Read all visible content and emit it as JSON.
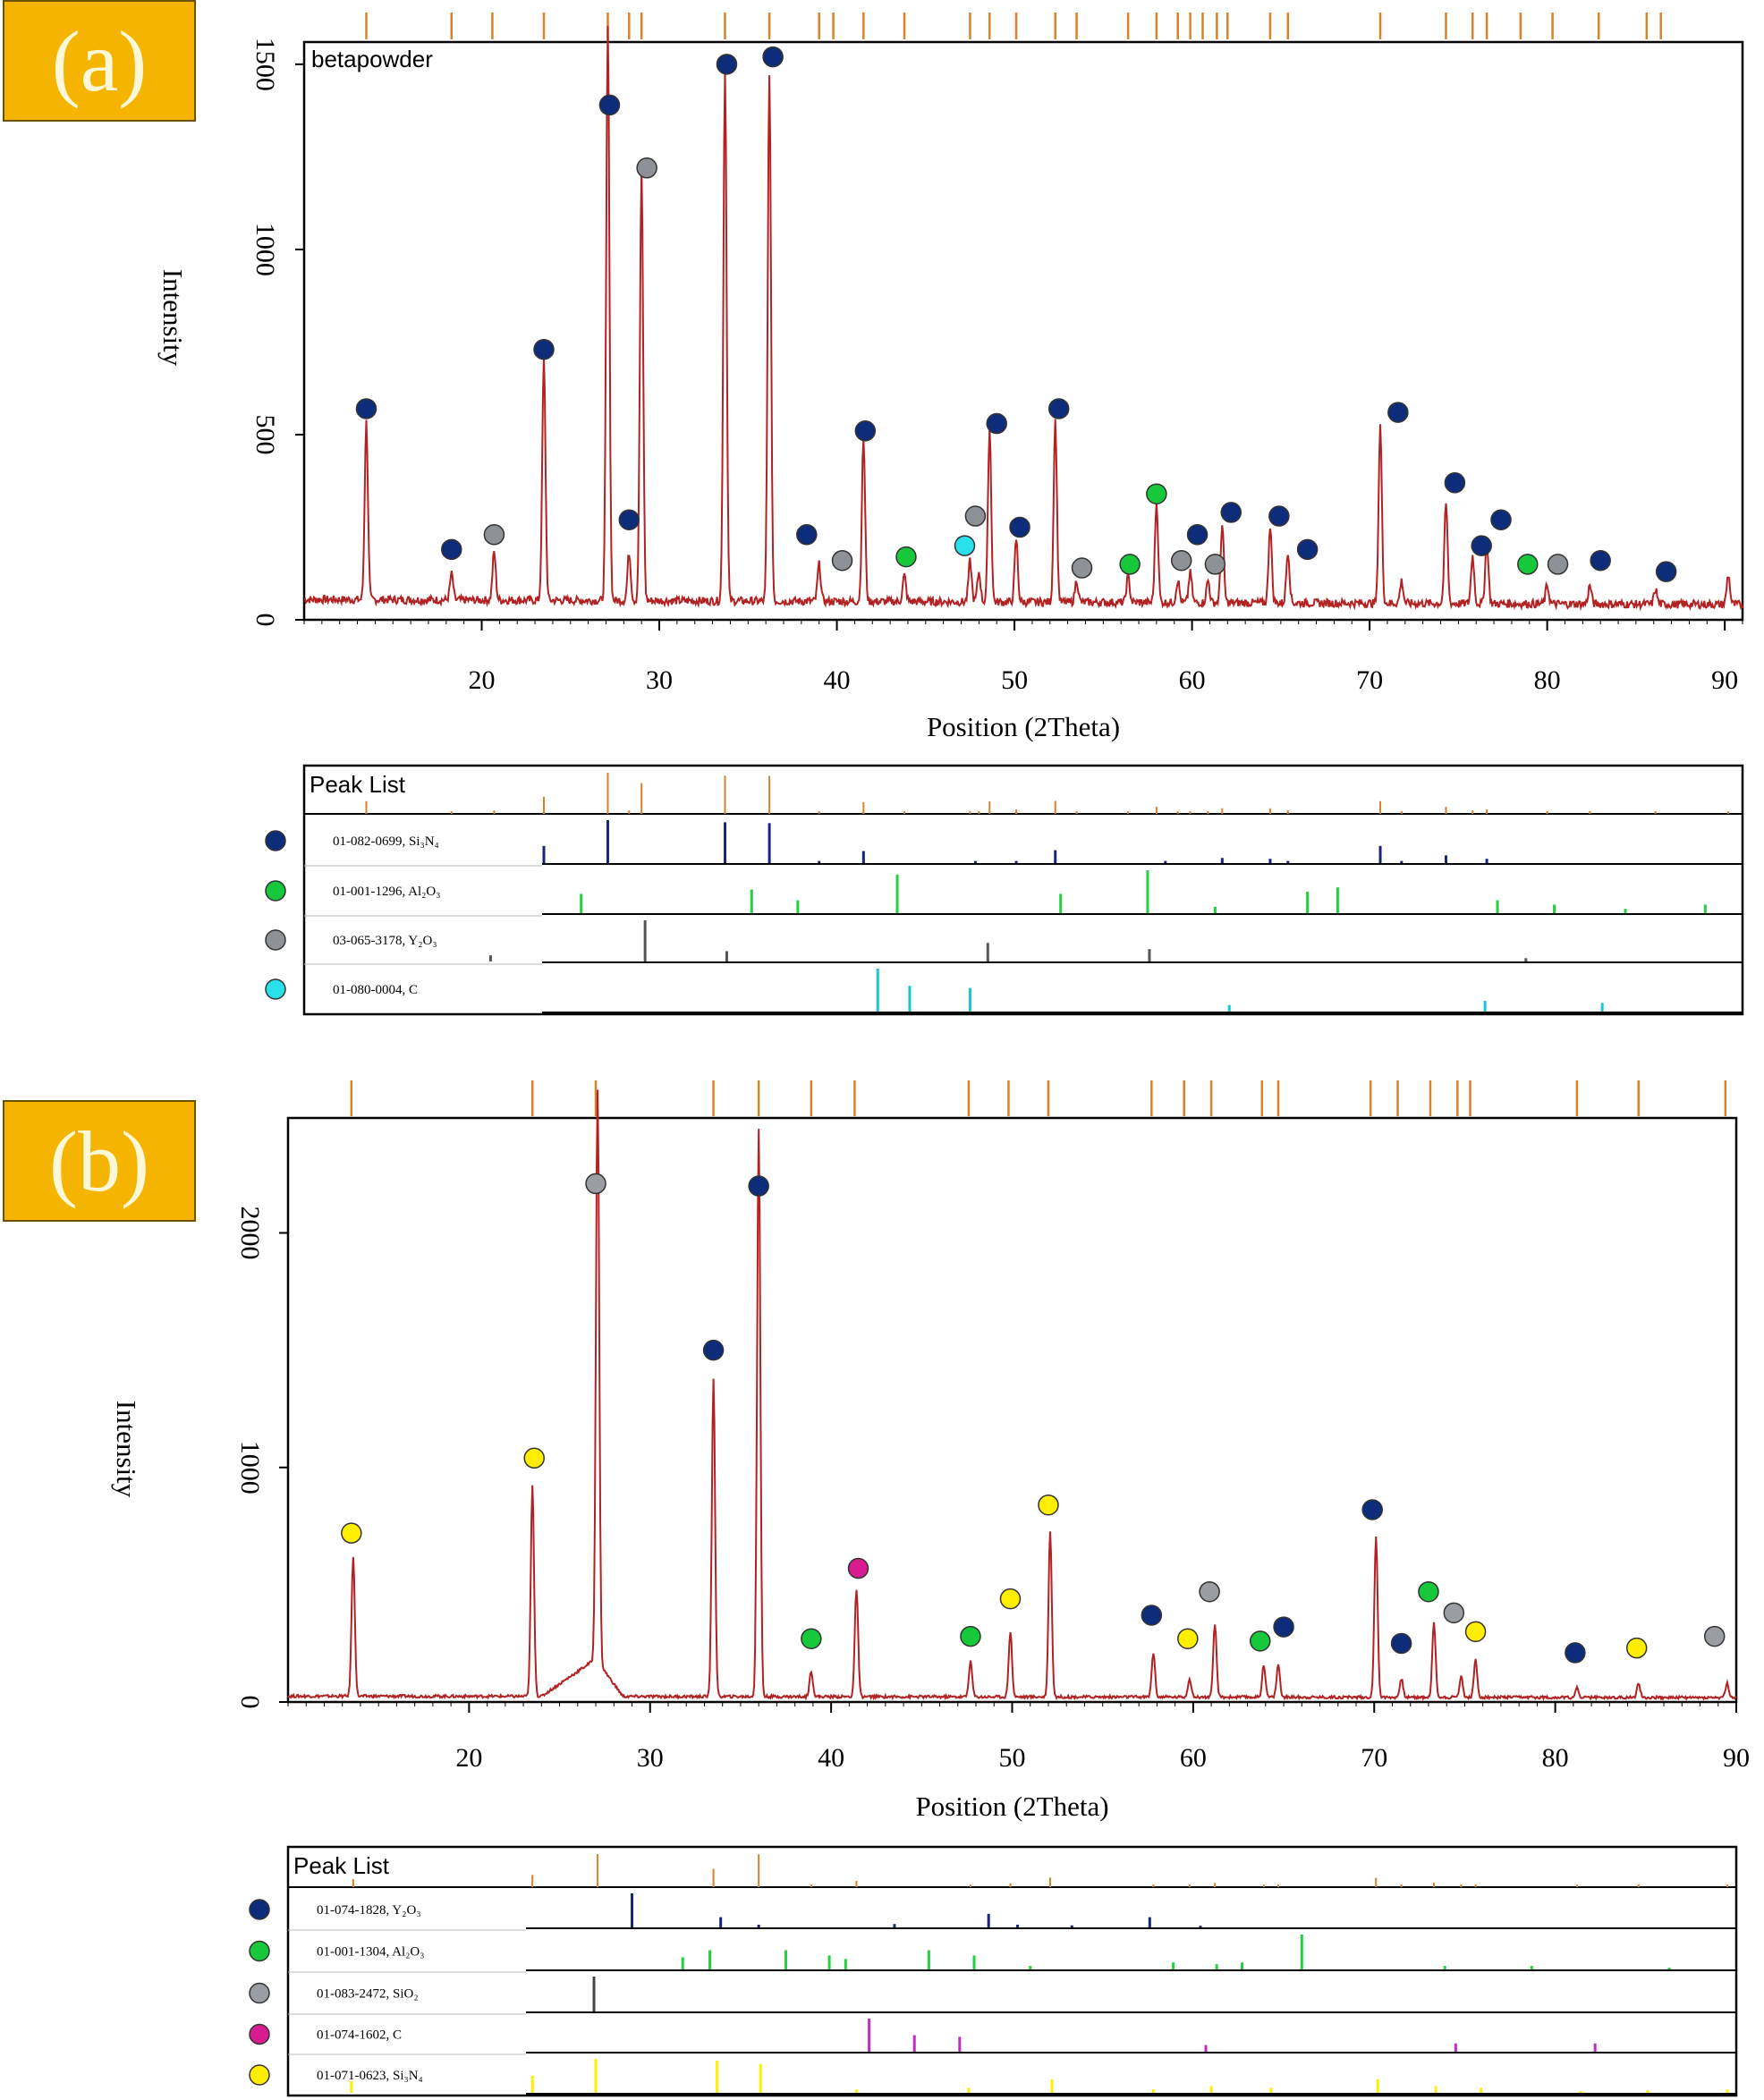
{
  "chart_data": [
    {
      "panel": "(a)",
      "type": "line",
      "title": "betapowder",
      "xlabel": "Position (2Theta)",
      "ylabel": "Intensity",
      "xlim": [
        10,
        91
      ],
      "ylim": [
        0,
        1560
      ],
      "xticks": [
        20,
        30,
        40,
        50,
        60,
        70,
        80,
        90
      ],
      "yticks": [
        0,
        500,
        1000,
        1500
      ],
      "line_color": "#b22222",
      "peaks": [
        [
          13.5,
          480
        ],
        [
          18.3,
          70
        ],
        [
          20.7,
          130
        ],
        [
          23.5,
          650
        ],
        [
          27.1,
          1550
        ],
        [
          28.3,
          130
        ],
        [
          29.0,
          1160
        ],
        [
          33.7,
          1440
        ],
        [
          36.2,
          1430
        ],
        [
          39.0,
          100
        ],
        [
          41.5,
          440
        ],
        [
          43.8,
          70
        ],
        [
          47.5,
          110
        ],
        [
          48.0,
          80
        ],
        [
          48.6,
          470
        ],
        [
          50.1,
          170
        ],
        [
          52.3,
          490
        ],
        [
          53.5,
          60
        ],
        [
          56.4,
          70
        ],
        [
          58.0,
          270
        ],
        [
          59.2,
          60
        ],
        [
          59.9,
          80
        ],
        [
          60.9,
          60
        ],
        [
          61.7,
          210
        ],
        [
          64.4,
          210
        ],
        [
          65.4,
          140
        ],
        [
          70.6,
          480
        ],
        [
          71.8,
          60
        ],
        [
          74.3,
          270
        ],
        [
          75.8,
          130
        ],
        [
          76.6,
          170
        ],
        [
          80.0,
          50
        ],
        [
          82.4,
          50
        ],
        [
          86.1,
          40
        ],
        [
          90.2,
          80
        ]
      ],
      "markers": [
        [
          13.5,
          570,
          "Si3N4"
        ],
        [
          18.3,
          190,
          "Si3N4"
        ],
        [
          20.7,
          230,
          "Y2O3"
        ],
        [
          23.5,
          730,
          "Si3N4"
        ],
        [
          27.2,
          1390,
          "Si3N4"
        ],
        [
          28.3,
          270,
          "Si3N4"
        ],
        [
          29.3,
          1220,
          "Y2O3"
        ],
        [
          33.8,
          1500,
          "Si3N4"
        ],
        [
          36.4,
          1520,
          "Si3N4"
        ],
        [
          38.3,
          230,
          "Si3N4"
        ],
        [
          40.3,
          160,
          "Y2O3"
        ],
        [
          41.6,
          510,
          "Si3N4"
        ],
        [
          43.9,
          170,
          "Al2O3"
        ],
        [
          47.2,
          200,
          "C"
        ],
        [
          47.8,
          280,
          "Y2O3"
        ],
        [
          49.0,
          530,
          "Si3N4"
        ],
        [
          50.3,
          250,
          "Si3N4"
        ],
        [
          52.5,
          570,
          "Si3N4"
        ],
        [
          53.8,
          140,
          "Y2O3"
        ],
        [
          56.5,
          150,
          "Al2O3"
        ],
        [
          58.0,
          340,
          "Al2O3"
        ],
        [
          59.4,
          160,
          "Y2O3"
        ],
        [
          60.3,
          230,
          "Si3N4"
        ],
        [
          61.3,
          150,
          "Y2O3"
        ],
        [
          62.2,
          290,
          "Si3N4"
        ],
        [
          64.9,
          280,
          "Si3N4"
        ],
        [
          66.5,
          190,
          "Si3N4"
        ],
        [
          71.6,
          560,
          "Si3N4"
        ],
        [
          74.8,
          370,
          "Si3N4"
        ],
        [
          76.3,
          200,
          "Si3N4"
        ],
        [
          77.4,
          270,
          "Si3N4"
        ],
        [
          78.9,
          150,
          "Al2O3"
        ],
        [
          80.6,
          150,
          "Y2O3"
        ],
        [
          83.0,
          160,
          "Si3N4"
        ],
        [
          86.7,
          130,
          "Si3N4"
        ]
      ],
      "reference_ticks": [
        13.5,
        18.3,
        20.6,
        23.5,
        27.1,
        28.3,
        29.0,
        33.7,
        36.2,
        39.0,
        39.8,
        41.5,
        43.8,
        47.5,
        48.6,
        50.1,
        52.3,
        53.5,
        56.4,
        58.0,
        59.2,
        59.9,
        60.6,
        61.4,
        62.0,
        64.4,
        65.4,
        70.6,
        74.3,
        75.8,
        76.6,
        78.5,
        80.3,
        82.9,
        85.6,
        86.4
      ],
      "peak_list": {
        "title": "Peak List",
        "phases": [
          {
            "code": "01-082-0699, Si₃N₄",
            "phase": "Si3N4",
            "color": "#1a237e",
            "sticks": [
              [
                23.5,
                0.4
              ],
              [
                27.1,
                1.0
              ],
              [
                33.7,
                0.95
              ],
              [
                36.2,
                0.93
              ],
              [
                39.0,
                0.05
              ],
              [
                41.5,
                0.28
              ],
              [
                47.8,
                0.05
              ],
              [
                50.1,
                0.05
              ],
              [
                52.3,
                0.3
              ],
              [
                58.5,
                0.05
              ],
              [
                61.7,
                0.12
              ],
              [
                64.4,
                0.1
              ],
              [
                65.4,
                0.05
              ],
              [
                70.6,
                0.4
              ],
              [
                71.8,
                0.05
              ],
              [
                74.3,
                0.18
              ],
              [
                76.6,
                0.1
              ]
            ]
          },
          {
            "code": "01-001-1296, Al₂O₃",
            "phase": "Al2O3",
            "color": "#21d13d",
            "sticks": [
              [
                25.6,
                0.45
              ],
              [
                35.2,
                0.55
              ],
              [
                37.8,
                0.3
              ],
              [
                43.4,
                0.9
              ],
              [
                52.6,
                0.45
              ],
              [
                57.5,
                1.0
              ],
              [
                61.3,
                0.15
              ],
              [
                66.5,
                0.5
              ],
              [
                68.2,
                0.6
              ],
              [
                77.2,
                0.3
              ],
              [
                80.4,
                0.2
              ],
              [
                84.4,
                0.1
              ],
              [
                88.9,
                0.2
              ]
            ]
          },
          {
            "code": "03-065-3178, Y₂O₃",
            "phase": "Y2O3",
            "color": "#555555",
            "sticks": [
              [
                20.5,
                0.15
              ],
              [
                29.2,
                1.0
              ],
              [
                33.8,
                0.25
              ],
              [
                48.5,
                0.45
              ],
              [
                57.6,
                0.3
              ],
              [
                78.8,
                0.08
              ]
            ]
          },
          {
            "code": "01-080-0004, C",
            "phase": "C",
            "color": "#18c7d1",
            "sticks": [
              [
                42.3,
                1.0
              ],
              [
                44.1,
                0.6
              ],
              [
                47.5,
                0.55
              ],
              [
                62.1,
                0.15
              ],
              [
                76.5,
                0.25
              ],
              [
                83.1,
                0.2
              ]
            ]
          }
        ]
      }
    },
    {
      "panel": "(b)",
      "type": "line",
      "title": "",
      "xlabel": "Position (2Theta)",
      "ylabel": "Intensity",
      "xlim": [
        10,
        90
      ],
      "ylim": [
        0,
        2490
      ],
      "xticks": [
        20,
        30,
        40,
        50,
        60,
        70,
        80,
        90
      ],
      "yticks": [
        0,
        1000,
        2000
      ],
      "line_color": "#b22222",
      "peaks": [
        [
          13.6,
          590
        ],
        [
          23.5,
          900
        ],
        [
          27.1,
          2440
        ],
        [
          33.5,
          1360
        ],
        [
          36.0,
          2420
        ],
        [
          38.9,
          110
        ],
        [
          41.4,
          460
        ],
        [
          47.7,
          150
        ],
        [
          49.9,
          280
        ],
        [
          52.1,
          710
        ],
        [
          57.8,
          190
        ],
        [
          59.8,
          80
        ],
        [
          61.2,
          310
        ],
        [
          63.9,
          140
        ],
        [
          64.7,
          140
        ],
        [
          70.1,
          690
        ],
        [
          71.5,
          80
        ],
        [
          73.3,
          320
        ],
        [
          74.8,
          90
        ],
        [
          75.6,
          160
        ],
        [
          81.2,
          40
        ],
        [
          84.6,
          60
        ],
        [
          89.5,
          60
        ]
      ],
      "hump": [
        [
          24.0,
          0
        ],
        [
          27.0,
          160
        ],
        [
          28.5,
          0
        ]
      ],
      "markers": [
        [
          13.5,
          720,
          "Si3N4"
        ],
        [
          23.6,
          1040,
          "Si3N4"
        ],
        [
          27.0,
          2210,
          "SiO2"
        ],
        [
          33.5,
          1500,
          "Y2O3"
        ],
        [
          36.0,
          2200,
          "Y2O3"
        ],
        [
          38.9,
          270,
          "Al2O3"
        ],
        [
          41.5,
          570,
          "C"
        ],
        [
          47.7,
          280,
          "Al2O3"
        ],
        [
          49.9,
          440,
          "Si3N4"
        ],
        [
          52.0,
          840,
          "Si3N4"
        ],
        [
          57.7,
          370,
          "Y2O3"
        ],
        [
          59.7,
          270,
          "Si3N4"
        ],
        [
          60.9,
          470,
          "SiO2"
        ],
        [
          63.7,
          260,
          "Al2O3"
        ],
        [
          65.0,
          320,
          "Y2O3"
        ],
        [
          69.9,
          820,
          "Y2O3"
        ],
        [
          71.5,
          250,
          "Y2O3"
        ],
        [
          73.0,
          470,
          "Al2O3"
        ],
        [
          74.4,
          380,
          "SiO2"
        ],
        [
          75.6,
          300,
          "Si3N4"
        ],
        [
          81.1,
          210,
          "Y2O3"
        ],
        [
          84.5,
          230,
          "Si3N4"
        ],
        [
          88.8,
          280,
          "SiO2"
        ]
      ],
      "reference_ticks": [
        13.5,
        23.5,
        27.0,
        33.5,
        36.0,
        38.9,
        41.3,
        47.6,
        49.8,
        52.0,
        57.7,
        59.5,
        61.0,
        63.8,
        64.7,
        69.8,
        71.3,
        73.1,
        74.6,
        75.3,
        81.2,
        84.6,
        89.4
      ],
      "peak_list": {
        "title": "Peak List",
        "phases": [
          {
            "code": "01-074-1828, Y₂O₃",
            "phase": "Y2O3",
            "color": "#1a237e",
            "sticks": [
              [
                29.0,
                1.0
              ],
              [
                33.9,
                0.3
              ],
              [
                36.0,
                0.08
              ],
              [
                43.5,
                0.1
              ],
              [
                48.7,
                0.4
              ],
              [
                50.3,
                0.08
              ],
              [
                53.3,
                0.06
              ],
              [
                57.6,
                0.3
              ],
              [
                60.4,
                0.05
              ]
            ]
          },
          {
            "code": "01-001-1304, Al₂O₃",
            "phase": "Al2O3",
            "color": "#21d13d",
            "sticks": [
              [
                31.8,
                0.35
              ],
              [
                33.3,
                0.55
              ],
              [
                37.5,
                0.55
              ],
              [
                39.9,
                0.4
              ],
              [
                40.8,
                0.3
              ],
              [
                45.4,
                0.55
              ],
              [
                47.9,
                0.4
              ],
              [
                51.0,
                0.1
              ],
              [
                58.9,
                0.2
              ],
              [
                61.3,
                0.15
              ],
              [
                62.7,
                0.2
              ],
              [
                66.0,
                1.0
              ],
              [
                73.9,
                0.1
              ],
              [
                78.7,
                0.1
              ],
              [
                86.3,
                0.05
              ]
            ]
          },
          {
            "code": "01-083-2472, SiO₂",
            "phase": "SiO2",
            "color": "#444444",
            "sticks": [
              [
                26.9,
                1.0
              ]
            ]
          },
          {
            "code": "01-074-1602, C",
            "phase": "C",
            "color": "#c22bc2",
            "sticks": [
              [
                42.1,
                1.0
              ],
              [
                44.6,
                0.5
              ],
              [
                47.1,
                0.45
              ],
              [
                60.7,
                0.2
              ],
              [
                74.5,
                0.25
              ],
              [
                82.2,
                0.25
              ]
            ]
          },
          {
            "code": "01-071-0623, Si₃N₄",
            "phase": "Si3N4",
            "color": "#ffee00",
            "sticks": [
              [
                13.5,
                0.35
              ],
              [
                23.5,
                0.5
              ],
              [
                27.0,
                1.0
              ],
              [
                33.7,
                0.95
              ],
              [
                36.1,
                0.85
              ],
              [
                41.4,
                0.1
              ],
              [
                47.6,
                0.15
              ],
              [
                52.2,
                0.4
              ],
              [
                57.8,
                0.1
              ],
              [
                61.0,
                0.2
              ],
              [
                64.3,
                0.15
              ],
              [
                70.2,
                0.4
              ],
              [
                73.4,
                0.2
              ],
              [
                75.9,
                0.15
              ],
              [
                81.4,
                0.05
              ],
              [
                85.1,
                0.08
              ],
              [
                89.5,
                0.1
              ]
            ]
          }
        ]
      }
    }
  ],
  "phase_colors": {
    "Si3N4": "#0d2d7a",
    "Al2O3": "#17c93a",
    "Y2O3": "#8e9196",
    "C": "#2ae0ea",
    "SiO2": "#9a9ea3"
  },
  "panel_b_phase_colors": {
    "Si3N4": "#ffee00",
    "Al2O3": "#17c93a",
    "Y2O3": "#0d2d7a",
    "SiO2": "#9a9ea3",
    "C": "#d81b8e"
  }
}
